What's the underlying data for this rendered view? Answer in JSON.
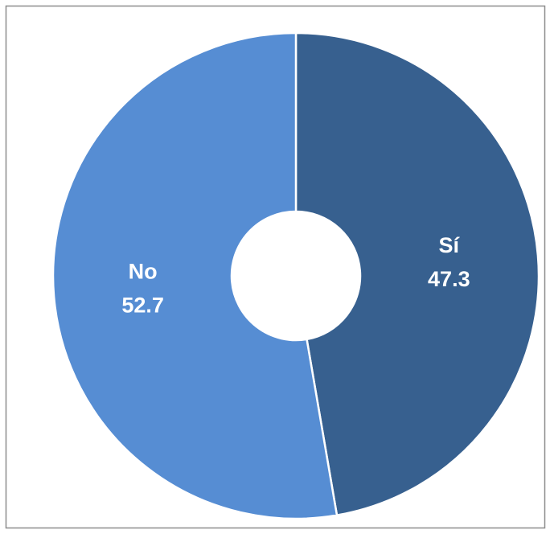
{
  "chart_data": {
    "type": "pie",
    "categories": [
      "Sí",
      "No"
    ],
    "values": [
      47.3,
      52.7
    ],
    "colors": [
      "#37608f",
      "#568dd3"
    ]
  }
}
